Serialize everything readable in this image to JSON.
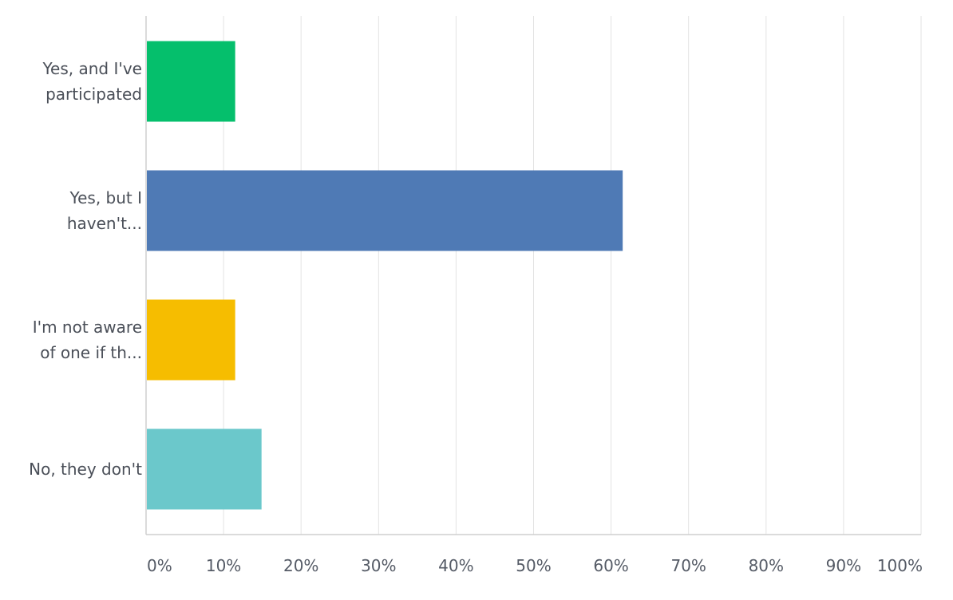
{
  "chart_data": {
    "type": "bar",
    "orientation": "horizontal",
    "title": "",
    "xlabel": "",
    "ylabel": "",
    "categories": [
      [
        "Yes, and I've",
        "participated"
      ],
      [
        "Yes, but I",
        "haven't..."
      ],
      [
        "I'm not aware",
        "of one if th..."
      ],
      [
        "No, they don't"
      ]
    ],
    "values": [
      11.5,
      61.5,
      11.5,
      14.9
    ],
    "colors": [
      "#05bf6c",
      "#4f7ab5",
      "#f6bd00",
      "#6bc8cb"
    ],
    "xlim": [
      0,
      100
    ],
    "xticks": [
      {
        "value": 0,
        "label": "0%"
      },
      {
        "value": 10,
        "label": "10%"
      },
      {
        "value": 20,
        "label": "20%"
      },
      {
        "value": 30,
        "label": "30%"
      },
      {
        "value": 40,
        "label": "40%"
      },
      {
        "value": 50,
        "label": "50%"
      },
      {
        "value": 60,
        "label": "60%"
      },
      {
        "value": 70,
        "label": "70%"
      },
      {
        "value": 80,
        "label": "80%"
      },
      {
        "value": 90,
        "label": "90%"
      },
      {
        "value": 100,
        "label": "100%"
      }
    ],
    "grid": true,
    "legend": "none"
  }
}
